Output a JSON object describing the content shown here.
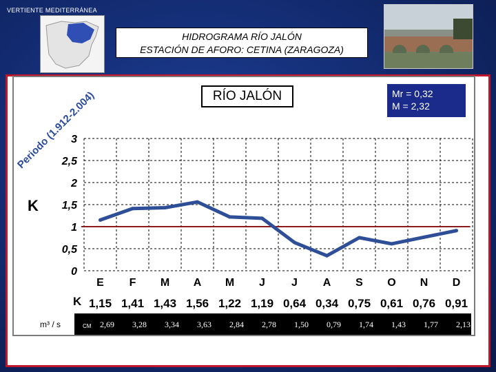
{
  "header": {
    "top_label": "VERTIENTE MEDITERRÁNEA",
    "title_line1": "HIDROGRAMA RÍO JALÓN",
    "title_line2": "ESTACIÓN DE AFORO: CETINA (ZARAGOZA)"
  },
  "panel": {
    "period_label": "Periodo (1.912-2.004)",
    "river_name": "RÍO JALÓN",
    "mr_text": "Mr = 0,32",
    "m_text": "M = 2,32",
    "k_axis_label": "K",
    "table_k_label": "K",
    "flow_label": "m³ / s",
    "cm_label": "CM"
  },
  "colors": {
    "line": "#2e4f98",
    "reference_line": "#8b1a1a",
    "frame": "#c0152a",
    "background": "#1a3a8c"
  },
  "chart_data": {
    "type": "line",
    "categories": [
      "E",
      "F",
      "M",
      "A",
      "M",
      "J",
      "J",
      "A",
      "S",
      "O",
      "N",
      "D"
    ],
    "series": [
      {
        "values": [
          1.15,
          1.41,
          1.43,
          1.56,
          1.22,
          1.19,
          0.64,
          0.34,
          0.75,
          0.61,
          0.76,
          0.91
        ]
      }
    ],
    "k_labels": [
      "1,15",
      "1,41",
      "1,43",
      "1,56",
      "1,22",
      "1,19",
      "0,64",
      "0,34",
      "0,75",
      "0,61",
      "0,76",
      "0,91"
    ],
    "flow_labels": [
      "2,69",
      "3,28",
      "3,34",
      "3,63",
      "2,84",
      "2,78",
      "1,50",
      "0,79",
      "1,74",
      "1,43",
      "1,77",
      "2,13"
    ],
    "yticks": [
      "0",
      "0,5",
      "1",
      "1,5",
      "2",
      "2,5",
      "3"
    ],
    "ylim": [
      0,
      3
    ],
    "reference_y": 1,
    "grid": true
  }
}
